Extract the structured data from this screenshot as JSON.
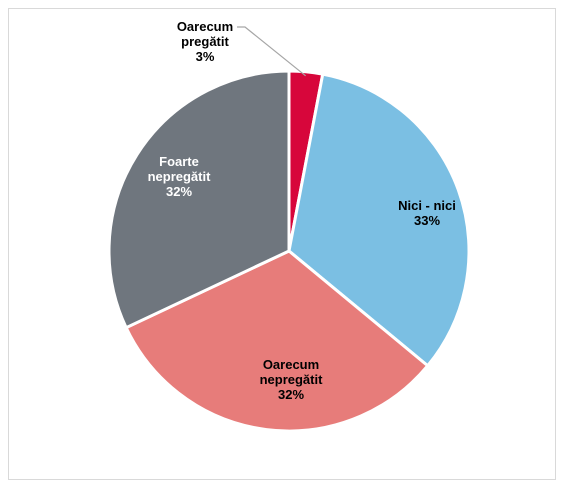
{
  "chart_data": {
    "type": "pie",
    "title": "",
    "slices": [
      {
        "label_lines": [
          "Oarecum",
          "pregătit"
        ],
        "value": 3,
        "value_label": "3%",
        "color": "#d7063b",
        "label_color": "#000000"
      },
      {
        "label_lines": [
          "Nici - nici"
        ],
        "value": 33,
        "value_label": "33%",
        "color": "#7bbfe3",
        "label_color": "#000000"
      },
      {
        "label_lines": [
          "Oarecum",
          "nepregătit"
        ],
        "value": 32,
        "value_label": "32%",
        "color": "#e77c7a",
        "label_color": "#000000"
      },
      {
        "label_lines": [
          "Foarte",
          "nepregătit"
        ],
        "value": 32,
        "value_label": "32%",
        "color": "#6f767e",
        "label_color": "#ffffff"
      }
    ],
    "start_angle_deg": 0,
    "direction": "clockwise",
    "legend": "none"
  }
}
